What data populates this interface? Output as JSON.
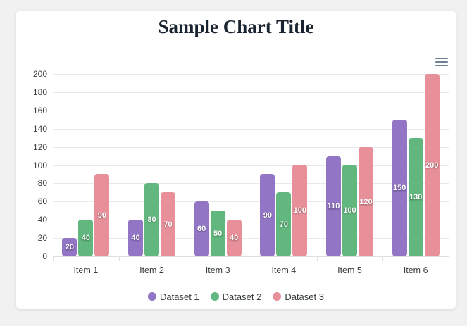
{
  "title": "Sample Chart Title",
  "toolbar": {
    "menu_icon": "menu-icon"
  },
  "colors": {
    "page_background": "#f1f1f2",
    "card_background": "#ffffff",
    "title_text": "#1a2330",
    "axis_label": "#3c4043",
    "grid_line": "#e9e9e9",
    "axis_line": "#dfe0e1",
    "data_label_text": "#ffffff",
    "menu_icon": "#6e8192"
  },
  "chart_data": {
    "type": "bar",
    "title": "Sample Chart Title",
    "categories": [
      "Item 1",
      "Item 2",
      "Item 3",
      "Item 4",
      "Item 5",
      "Item 6"
    ],
    "series": [
      {
        "name": "Dataset 1",
        "color": "#9275c5",
        "values": [
          20,
          40,
          60,
          90,
          110,
          150
        ]
      },
      {
        "name": "Dataset 2",
        "color": "#61b77e",
        "values": [
          40,
          80,
          50,
          70,
          100,
          130
        ]
      },
      {
        "name": "Dataset 3",
        "color": "#e8909a",
        "values": [
          90,
          70,
          40,
          100,
          120,
          200
        ]
      }
    ],
    "xlabel": "",
    "ylabel": "",
    "ylim": [
      0,
      200
    ],
    "y_ticks": [
      0,
      20,
      40,
      60,
      80,
      100,
      120,
      140,
      160,
      180,
      200
    ],
    "grid": true,
    "data_labels": true,
    "legend_position": "bottom"
  }
}
